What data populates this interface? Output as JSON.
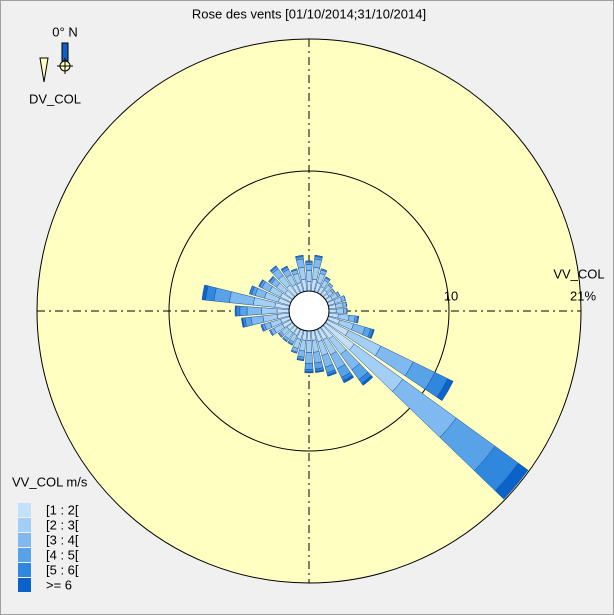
{
  "chart_data": {
    "type": "windrose",
    "title": "Rose des vents [01/10/2014;31/10/2014]",
    "north_label": "0° N",
    "direction_label": "DV_COL",
    "radial_label": "VV_COL",
    "legend_title": "VV_COL m/s",
    "directions": [
      0,
      10,
      20,
      30,
      40,
      50,
      60,
      70,
      80,
      90,
      100,
      110,
      120,
      130,
      140,
      150,
      160,
      170,
      180,
      190,
      200,
      210,
      220,
      230,
      240,
      250,
      260,
      270,
      280,
      290,
      300,
      310,
      320,
      330,
      340,
      350
    ],
    "rlim": [
      0,
      21
    ],
    "rticks": [
      10,
      {
        "value": 21,
        "label": "21%"
      }
    ],
    "series": [
      {
        "name": "[1 : 2[",
        "color": "#c4e0fa",
        "values": [
          0.8,
          1,
          0.8,
          0.6,
          0.5,
          0.4,
          0.5,
          0.6,
          0.6,
          0.6,
          0.8,
          1,
          2,
          3,
          1.2,
          1,
          1,
          0.8,
          0.8,
          0.8,
          0.8,
          0.6,
          0.6,
          0.6,
          0.8,
          0.8,
          1,
          1,
          1.2,
          1,
          1,
          0.8,
          1,
          0.8,
          0.8,
          1
        ]
      },
      {
        "name": "[2 : 3[",
        "color": "#a3cef5",
        "values": [
          0.9,
          1,
          0.8,
          0.6,
          0.5,
          0.4,
          0.5,
          0.6,
          0.6,
          0.6,
          0.9,
          1.2,
          3,
          5,
          1.6,
          1.4,
          1.2,
          1,
          1,
          0.9,
          0.8,
          0.6,
          0.6,
          0.6,
          0.8,
          0.9,
          1.2,
          1.3,
          1.8,
          1.2,
          1,
          0.9,
          1,
          0.9,
          0.8,
          1
        ]
      },
      {
        "name": "[3 : 4[",
        "color": "#7fb9ef",
        "values": [
          0.5,
          0.7,
          0.3,
          0.2,
          0.2,
          0.2,
          0.2,
          0.3,
          0.3,
          0.3,
          0.5,
          1,
          3,
          5.5,
          1.6,
          1.3,
          1,
          0.9,
          0.9,
          0.5,
          0.3,
          0.2,
          0.2,
          0.2,
          0.3,
          0.5,
          1,
          1.2,
          2,
          0.8,
          0.7,
          0.5,
          0.7,
          0.5,
          0.3,
          0.7
        ]
      },
      {
        "name": "[4 : 5[",
        "color": "#58a2e8",
        "values": [
          0.2,
          0.2,
          0.1,
          0.1,
          0,
          0,
          0,
          0,
          0,
          0,
          0.2,
          0.5,
          2,
          4,
          1,
          0.8,
          0.5,
          0.5,
          0.5,
          0.2,
          0.1,
          0.1,
          0.1,
          0.1,
          0.1,
          0.2,
          0.5,
          0.6,
          1.3,
          0.3,
          0.2,
          0.2,
          0.2,
          0.2,
          0.1,
          0.2
        ]
      },
      {
        "name": "[5 : 6[",
        "color": "#3088de",
        "values": [
          0.1,
          0.1,
          0,
          0,
          0,
          0,
          0,
          0,
          0,
          0,
          0.1,
          0.2,
          1.2,
          2.4,
          0.4,
          0.3,
          0.2,
          0.2,
          0.2,
          0.1,
          0,
          0,
          0,
          0,
          0,
          0.1,
          0.2,
          0.3,
          0.7,
          0.2,
          0.1,
          0.1,
          0.1,
          0.1,
          0,
          0.1
        ]
      },
      {
        "name": ">= 6",
        "color": "#0b62c8",
        "values": [
          0,
          0,
          0,
          0,
          0,
          0,
          0,
          0,
          0,
          0,
          0,
          0.1,
          0.5,
          1,
          0.2,
          0.2,
          0.1,
          0.1,
          0.1,
          0,
          0,
          0,
          0,
          0,
          0,
          0,
          0.1,
          0.1,
          0.3,
          0,
          0,
          0,
          0,
          0,
          0,
          0
        ]
      }
    ]
  }
}
